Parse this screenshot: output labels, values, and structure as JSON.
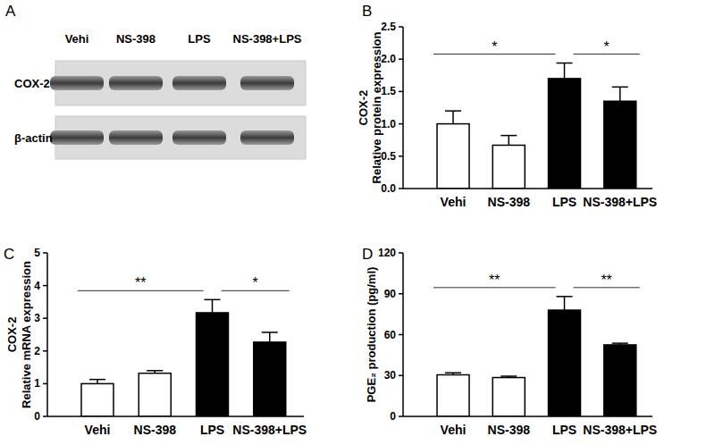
{
  "blot": {
    "title": "A",
    "lanes": [
      "Vehi",
      "NS-398",
      "LPS",
      "NS-398+LPS"
    ],
    "rows": [
      "COX-2",
      "β-actin"
    ]
  },
  "chart_data": [
    {
      "type": "bar",
      "title": "B",
      "ylabel": [
        "COX-2",
        "Relative protein expression"
      ],
      "categories": [
        "Vehi",
        "NS-398",
        "LPS",
        "NS-398+LPS"
      ],
      "values": [
        1.0,
        0.67,
        1.7,
        1.35
      ],
      "errors": [
        0.2,
        0.15,
        0.24,
        0.22
      ],
      "colors": [
        "#ffffff",
        "#ffffff",
        "#000000",
        "#000000"
      ],
      "ylim": [
        0,
        2.5
      ],
      "yticks": [
        {
          "value": 0,
          "label": "0.0"
        },
        0.5,
        {
          "value": 1,
          "label": "1.0"
        },
        1.5,
        {
          "value": 2,
          "label": "2.0"
        },
        2.5
      ],
      "annotations": [
        {
          "from": 0,
          "to": 2,
          "label": "*"
        },
        {
          "from": 2,
          "to": 3,
          "label": "*"
        }
      ]
    },
    {
      "type": "bar",
      "title": "C",
      "ylabel": [
        "COX-2",
        "Relative mRNA expression"
      ],
      "categories": [
        "Vehi",
        "NS-398",
        "LPS",
        "NS-398+LPS"
      ],
      "values": [
        1.0,
        1.32,
        3.17,
        2.27
      ],
      "errors": [
        0.13,
        0.08,
        0.4,
        0.3
      ],
      "colors": [
        "#ffffff",
        "#ffffff",
        "#000000",
        "#000000"
      ],
      "ylim": [
        0,
        5
      ],
      "yticks": [
        0,
        1,
        2,
        3,
        4,
        5
      ],
      "annotations": [
        {
          "from": 0,
          "to": 2,
          "label": "**"
        },
        {
          "from": 2,
          "to": 3,
          "label": "*"
        }
      ]
    },
    {
      "type": "bar",
      "title": "D",
      "ylabel": [
        "PGE₂ production (pg/ml)"
      ],
      "categories": [
        "Vehi",
        "NS-398",
        "LPS",
        "NS-398+LPS"
      ],
      "values": [
        30.5,
        28.5,
        78,
        52.5
      ],
      "errors": [
        1.5,
        1.0,
        10,
        1.2
      ],
      "colors": [
        "#ffffff",
        "#ffffff",
        "#000000",
        "#000000"
      ],
      "ylim": [
        0,
        120
      ],
      "yticks": [
        0,
        30,
        60,
        90,
        120
      ],
      "annotations": [
        {
          "from": 0,
          "to": 2,
          "label": "**"
        },
        {
          "from": 2,
          "to": 3,
          "label": "**"
        }
      ]
    }
  ]
}
